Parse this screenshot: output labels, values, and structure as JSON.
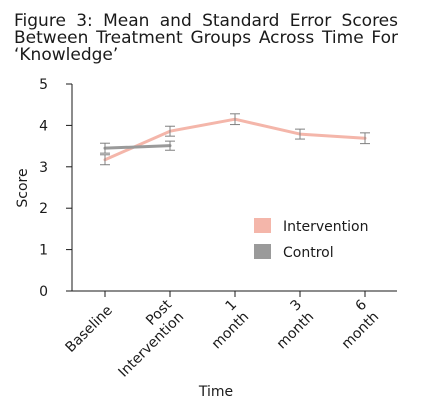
{
  "chart_data": {
    "type": "line",
    "title": "Figure 3: Mean and Standard Error Scores Between Treatment Groups Across Time For ‘Knowledge’",
    "xlabel": "Time",
    "ylabel": "Score",
    "ylim": [
      0,
      5
    ],
    "yticks": [
      "0",
      "1",
      "2",
      "3",
      "4",
      "5"
    ],
    "categories": [
      "Baseline",
      "Post Intervention",
      "1 month",
      "3 month",
      "6 month"
    ],
    "legend_position": "right",
    "grid": false,
    "series": [
      {
        "name": "Intervention",
        "color": "#f4b6aa",
        "values": [
          3.17,
          3.86,
          4.15,
          3.79,
          3.69
        ],
        "errors": [
          0.12,
          0.12,
          0.13,
          0.12,
          0.13
        ]
      },
      {
        "name": "Control",
        "color": "#9a9a9a",
        "values": [
          3.45,
          3.51,
          null,
          null,
          null
        ],
        "errors": [
          0.12,
          0.11,
          null,
          null,
          null
        ]
      }
    ]
  }
}
